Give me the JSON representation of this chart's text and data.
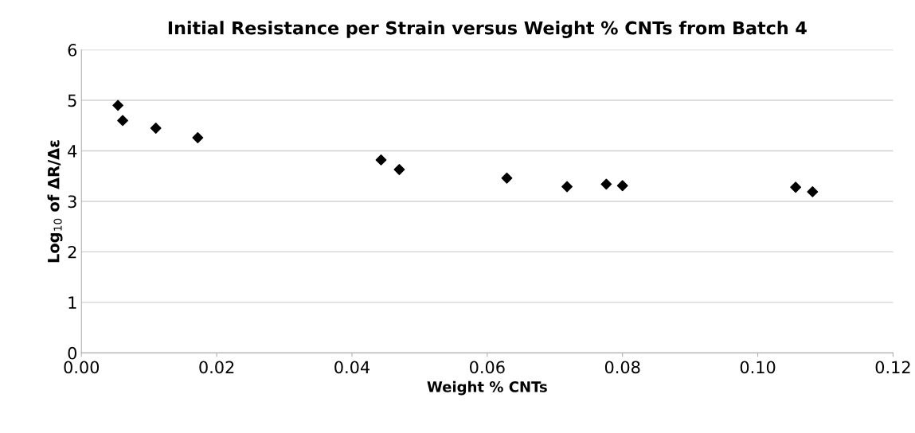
{
  "chart_data": {
    "type": "scatter",
    "title": "Initial Resistance per Strain versus Weight % CNTs from Batch 4",
    "xlabel": "Weight % CNTs",
    "ylabel": "Log$_{10}$ of ΔR/Δε",
    "x": [
      0.0054,
      0.0061,
      0.011,
      0.0172,
      0.0443,
      0.047,
      0.0629,
      0.0718,
      0.0776,
      0.08,
      0.1056,
      0.1081
    ],
    "series": [
      {
        "color": "#000000",
        "values": [
          4.9,
          4.6,
          4.45,
          4.26,
          3.82,
          3.63,
          3.46,
          3.29,
          3.34,
          3.31,
          3.28,
          3.19
        ]
      }
    ],
    "xlim": [
      0,
      0.12
    ],
    "xticks": [
      {
        "value": 0,
        "label": "0.00"
      },
      {
        "value": 0.02,
        "label": "0.02"
      },
      {
        "value": 0.04,
        "label": "0.04"
      },
      {
        "value": 0.06,
        "label": "0.06"
      },
      {
        "value": 0.08,
        "label": "0.08"
      },
      {
        "value": 0.1,
        "label": "0.10"
      },
      {
        "value": 0.12,
        "label": "0.12"
      }
    ],
    "ylim": [
      0,
      6
    ],
    "yticks": [
      0,
      1,
      2,
      3,
      4,
      5,
      6
    ],
    "grid": "y",
    "marker": "diamond",
    "legend": false
  }
}
